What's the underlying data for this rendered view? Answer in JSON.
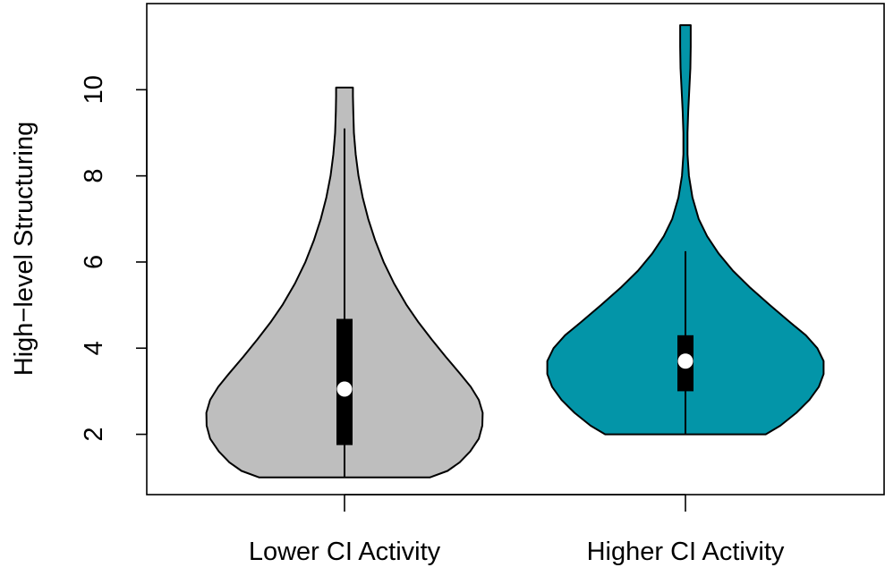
{
  "chart_data": {
    "type": "violin",
    "title": "",
    "xlabel": "",
    "ylabel": "High−level Structuring",
    "categories": [
      "Lower CI Activity",
      "Higher CI Activity"
    ],
    "ylim": [
      0.6,
      12.0
    ],
    "yticks": [
      2,
      4,
      6,
      8,
      10
    ],
    "grid": false,
    "series": [
      {
        "color": "#bebebe",
        "min": 1.0,
        "q1": 1.75,
        "median": 3.05,
        "q3": 4.68,
        "whisker_low": 1.0,
        "whisker_high": 9.1,
        "max": 10.05,
        "density": [
          [
            1.0,
            2.45
          ],
          [
            1.15,
            2.95
          ],
          [
            1.35,
            3.3
          ],
          [
            1.6,
            3.6
          ],
          [
            1.9,
            3.85
          ],
          [
            2.2,
            3.95
          ],
          [
            2.5,
            3.96
          ],
          [
            2.8,
            3.85
          ],
          [
            3.1,
            3.62
          ],
          [
            3.4,
            3.32
          ],
          [
            3.8,
            2.9
          ],
          [
            4.2,
            2.5
          ],
          [
            4.6,
            2.12
          ],
          [
            5.0,
            1.78
          ],
          [
            5.5,
            1.42
          ],
          [
            6.0,
            1.12
          ],
          [
            6.5,
            0.88
          ],
          [
            7.0,
            0.68
          ],
          [
            7.5,
            0.52
          ],
          [
            8.0,
            0.4
          ],
          [
            8.5,
            0.32
          ],
          [
            9.0,
            0.27
          ],
          [
            9.5,
            0.25
          ],
          [
            9.85,
            0.24
          ],
          [
            10.05,
            0.24
          ]
        ]
      },
      {
        "color": "#0395a8",
        "min": 2.0,
        "q1": 3.0,
        "median": 3.7,
        "q3": 4.3,
        "whisker_low": 2.0,
        "whisker_high": 6.25,
        "max": 11.5,
        "density": [
          [
            2.0,
            2.3
          ],
          [
            2.2,
            2.72
          ],
          [
            2.5,
            3.18
          ],
          [
            2.8,
            3.55
          ],
          [
            3.1,
            3.82
          ],
          [
            3.4,
            3.96
          ],
          [
            3.7,
            3.96
          ],
          [
            4.0,
            3.78
          ],
          [
            4.3,
            3.45
          ],
          [
            4.6,
            3.0
          ],
          [
            5.0,
            2.42
          ],
          [
            5.4,
            1.86
          ],
          [
            5.8,
            1.36
          ],
          [
            6.2,
            0.95
          ],
          [
            6.6,
            0.62
          ],
          [
            7.0,
            0.38
          ],
          [
            7.5,
            0.2
          ],
          [
            8.0,
            0.1
          ],
          [
            8.5,
            0.06
          ],
          [
            9.0,
            0.06
          ],
          [
            9.5,
            0.08
          ],
          [
            10.0,
            0.11
          ],
          [
            10.5,
            0.14
          ],
          [
            11.0,
            0.15
          ],
          [
            11.5,
            0.15
          ]
        ]
      }
    ]
  }
}
